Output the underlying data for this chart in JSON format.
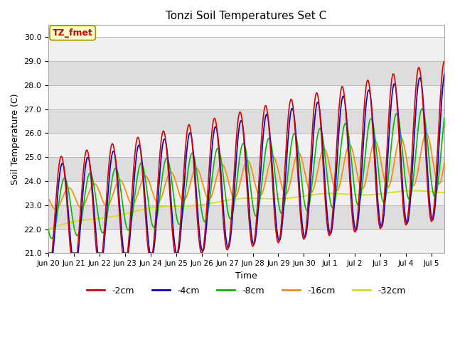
{
  "title": "Tonzi Soil Temperatures Set C",
  "xlabel": "Time",
  "ylabel": "Soil Temperature (C)",
  "ylim": [
    21.0,
    30.5
  ],
  "yticks": [
    21.0,
    22.0,
    23.0,
    24.0,
    25.0,
    26.0,
    27.0,
    28.0,
    29.0,
    30.0
  ],
  "series_colors": [
    "#dd0000",
    "#0000cc",
    "#00bb00",
    "#ff8800",
    "#dddd00"
  ],
  "series_labels": [
    "-2cm",
    "-4cm",
    "-8cm",
    "-16cm",
    "-32cm"
  ],
  "annotation_text": "TZ_fmet",
  "annotation_color": "#cc0000",
  "annotation_bg": "#ffffcc",
  "annotation_border": "#999900",
  "fig_bg": "#ffffff",
  "axes_bg": "#ffffff",
  "band_dark": "#dddddd",
  "band_light": "#f0f0f0",
  "xtick_labels": [
    "Jun 20",
    "Jun 21",
    "Jun 22",
    "Jun 23",
    "Jun 24",
    "Jun 25",
    "Jun 26",
    "Jun 27",
    "Jun 28",
    "Jun 29",
    "Jun 30",
    "Jul 1",
    "Jul 2",
    "Jul 3",
    "Jul 4",
    "Jul 5"
  ],
  "line_width": 1.2
}
